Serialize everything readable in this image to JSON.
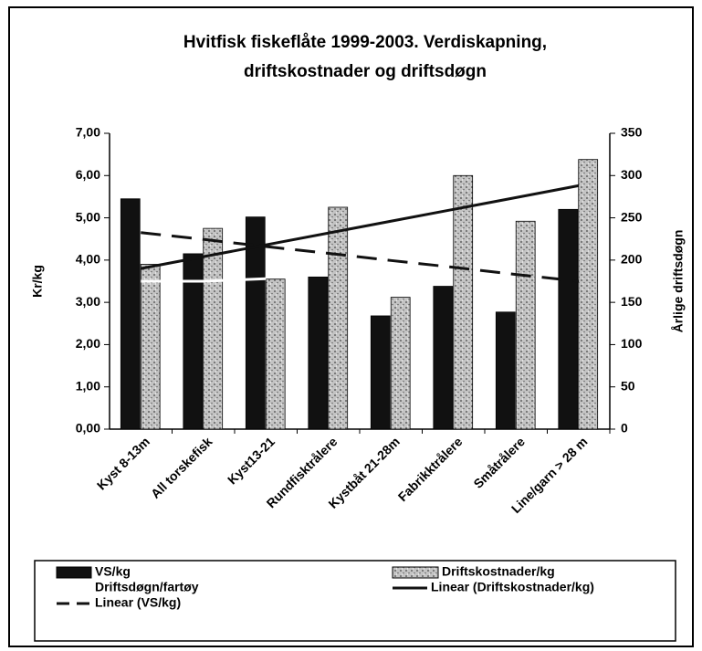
{
  "chart_data": {
    "type": "bar",
    "title": [
      "Hvitfisk fiskeflåte 1999-2003. Verdiskapning,",
      "driftskostnader og driftsdøgn"
    ],
    "y_label": "Kr/kg",
    "y2_label": "Årlige driftsdøgn",
    "categories": [
      "Kyst 8-13m",
      "All torskefisk",
      "Kyst13-21",
      "Rundfisktrålere",
      "Kystbåt 21-28m",
      "Fabrikktrålere",
      "Småtrålere",
      "Line/garn > 28 m"
    ],
    "series": [
      {
        "name": "VS/kg",
        "type": "bar",
        "color": "#111111",
        "values": [
          5.45,
          4.15,
          5.02,
          3.6,
          2.68,
          3.38,
          2.77,
          5.2
        ]
      },
      {
        "name": "Driftskostnader/kg",
        "type": "bar",
        "color": "#b8b8b8",
        "values": [
          3.9,
          4.75,
          3.55,
          5.25,
          3.12,
          6.0,
          4.92,
          6.38
        ]
      },
      {
        "name": "Driftsdøgn/fartøy",
        "type": "line",
        "axis": "y2",
        "color": "#ffffff",
        "values": [
          175,
          175,
          178,
          null,
          null,
          null,
          null,
          null
        ]
      },
      {
        "name": "Linear (Driftskostnader/kg)",
        "type": "line",
        "style": "solid",
        "color": "#111111",
        "values": [
          3.8,
          4.08,
          4.36,
          4.64,
          4.92,
          5.2,
          5.48,
          5.76
        ]
      },
      {
        "name": "Linear (VS/kg)",
        "type": "line",
        "style": "dashed",
        "color": "#111111",
        "values": [
          4.65,
          4.49,
          4.32,
          4.16,
          3.99,
          3.83,
          3.66,
          3.5
        ]
      }
    ],
    "ylim": [
      0,
      7
    ],
    "yticks": [
      {
        "value": 0,
        "label": "0,00"
      },
      {
        "value": 1,
        "label": "1,00"
      },
      {
        "value": 2,
        "label": "2,00"
      },
      {
        "value": 3,
        "label": "3,00"
      },
      {
        "value": 4,
        "label": "4,00"
      },
      {
        "value": 5,
        "label": "5,00"
      },
      {
        "value": 6,
        "label": "6,00"
      },
      {
        "value": 7,
        "label": "7,00"
      }
    ],
    "y2lim": [
      0,
      350
    ],
    "y2ticks": [
      0,
      50,
      100,
      150,
      200,
      250,
      300,
      350
    ]
  }
}
